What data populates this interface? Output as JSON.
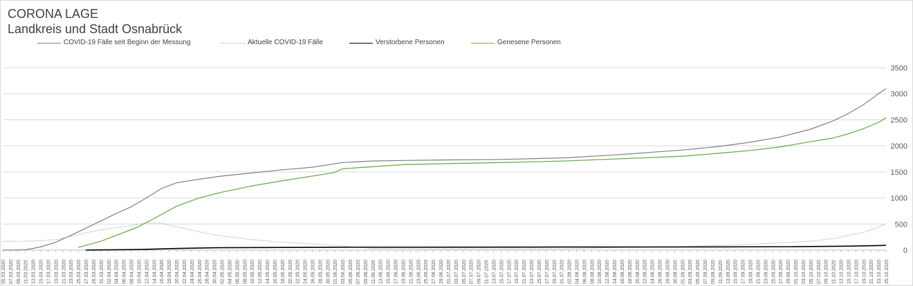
{
  "title": {
    "line1": "CORONA LAGE",
    "line2": "Landkreis und Stadt Osnabrück"
  },
  "legend": [
    {
      "label": "COVID-19 Fälle seit Beginn der Messung",
      "color": "#7f7f7f",
      "style": "solid"
    },
    {
      "label": "Aktuelle COVID-19 Fälle",
      "color": "#a6a6a6",
      "style": "dotted"
    },
    {
      "label": "Verstorbene Personen",
      "color": "#000000",
      "style": "solid"
    },
    {
      "label": "Genesene Personen",
      "color": "#70ad47",
      "style": "solid"
    }
  ],
  "chart_data": {
    "type": "line",
    "title": "CORONA LAGE",
    "subtitle": "Landkreis und Stadt Osnabrück",
    "xlabel": "",
    "ylabel": "",
    "ylim": [
      0,
      3500
    ],
    "yticks": [
      0,
      500,
      1000,
      1500,
      2000,
      2500,
      3000,
      3500
    ],
    "grid": "horizontal",
    "legend_position": "top",
    "x_start": "05.03.2020",
    "x_end": "25.10.2020",
    "x_tick_labels": [
      "05.03.2020",
      "07.03.2020",
      "09.03.2020",
      "11.03.2020",
      "13.03.2020",
      "15.03.2020",
      "17.03.2020",
      "19.03.2020",
      "21.03.2020",
      "23.03.2020",
      "25.03.2020",
      "27.03.2020",
      "29.03.2020",
      "31.03.2020",
      "02.04.2020",
      "04.04.2020",
      "06.04.2020",
      "08.04.2020",
      "10.04.2020",
      "12.04.2020",
      "14.04.2020",
      "16.04.2020",
      "18.04.2020",
      "20.04.2020",
      "22.04.2020",
      "24.04.2020",
      "26.04.2020",
      "28.04.2020",
      "30.04.2020",
      "02.05.2020",
      "04.05.2020",
      "06.05.2020",
      "08.05.2020",
      "10.05.2020",
      "12.05.2020",
      "14.05.2020",
      "16.05.2020",
      "18.05.2020",
      "20.05.2020",
      "22.05.2020",
      "24.05.2020",
      "26.05.2020",
      "28.05.2020",
      "30.05.2020",
      "01.06.2020",
      "03.06.2020",
      "05.06.2020",
      "07.06.2020",
      "09.06.2020",
      "11.06.2020",
      "13.06.2020",
      "15.06.2020",
      "17.06.2020",
      "19.06.2020",
      "21.06.2020",
      "23.06.2020",
      "25.06.2020",
      "27.06.2020",
      "29.06.2020",
      "01.07.2020",
      "03.07.2020",
      "05.07.2020",
      "07.07.2020",
      "09.07.2020",
      "11.07.2020",
      "13.07.2020",
      "15.07.2020",
      "17.07.2020",
      "19.07.2020",
      "21.07.2020",
      "23.07.2020",
      "25.07.2020",
      "27.07.2020",
      "29.07.2020",
      "31.07.2020",
      "02.08.2020",
      "04.08.2020",
      "06.08.2020",
      "08.08.2020",
      "10.08.2020",
      "12.08.2020",
      "14.08.2020",
      "16.08.2020",
      "18.08.2020",
      "20.08.2020",
      "22.08.2020",
      "24.08.2020",
      "26.08.2020",
      "28.08.2020",
      "30.08.2020",
      "01.09.2020",
      "03.09.2020",
      "05.09.2020",
      "07.09.2020",
      "09.09.2020",
      "11.09.2020",
      "13.09.2020",
      "15.09.2020",
      "17.09.2020",
      "19.09.2020",
      "21.09.2020",
      "23.09.2020",
      "25.09.2020",
      "27.09.2020",
      "29.09.2020",
      "01.10.2020",
      "03.10.2020",
      "05.10.2020",
      "07.10.2020",
      "09.10.2020",
      "11.10.2020",
      "13.10.2020",
      "15.10.2020",
      "17.10.2020",
      "19.10.2020",
      "21.10.2020",
      "23.10.2020",
      "25.10.2020"
    ],
    "series": [
      {
        "name": "COVID-19 Fälle seit Beginn der Messung",
        "color": "#7f7f7f",
        "points": [
          [
            "05.03.2020",
            0
          ],
          [
            "11.03.2020",
            5
          ],
          [
            "15.03.2020",
            60
          ],
          [
            "19.03.2020",
            150
          ],
          [
            "23.03.2020",
            280
          ],
          [
            "27.03.2020",
            420
          ],
          [
            "31.03.2020",
            560
          ],
          [
            "04.04.2020",
            700
          ],
          [
            "08.04.2020",
            830
          ],
          [
            "12.04.2020",
            1000
          ],
          [
            "16.04.2020",
            1180
          ],
          [
            "20.04.2020",
            1290
          ],
          [
            "26.04.2020",
            1360
          ],
          [
            "02.05.2020",
            1420
          ],
          [
            "10.05.2020",
            1480
          ],
          [
            "18.05.2020",
            1540
          ],
          [
            "26.05.2020",
            1590
          ],
          [
            "03.06.2020",
            1680
          ],
          [
            "11.06.2020",
            1710
          ],
          [
            "19.06.2020",
            1720
          ],
          [
            "01.07.2020",
            1730
          ],
          [
            "15.07.2020",
            1740
          ],
          [
            "01.08.2020",
            1770
          ],
          [
            "15.08.2020",
            1830
          ],
          [
            "01.09.2020",
            1920
          ],
          [
            "11.09.2020",
            1990
          ],
          [
            "19.09.2020",
            2070
          ],
          [
            "27.09.2020",
            2170
          ],
          [
            "05.10.2020",
            2320
          ],
          [
            "11.10.2020",
            2480
          ],
          [
            "15.10.2020",
            2620
          ],
          [
            "19.10.2020",
            2790
          ],
          [
            "23.10.2020",
            3000
          ],
          [
            "25.10.2020",
            3100
          ]
        ]
      },
      {
        "name": "Aktuelle COVID-19 Fälle",
        "color": "#a6a6a6",
        "points": [
          [
            "05.03.2020",
            170
          ],
          [
            "11.03.2020",
            170
          ],
          [
            "15.03.2020",
            180
          ],
          [
            "19.03.2020",
            200
          ],
          [
            "23.03.2020",
            260
          ],
          [
            "27.03.2020",
            330
          ],
          [
            "31.03.2020",
            390
          ],
          [
            "04.04.2020",
            430
          ],
          [
            "08.04.2020",
            470
          ],
          [
            "12.04.2020",
            520
          ],
          [
            "16.04.2020",
            520
          ],
          [
            "18.04.2020",
            480
          ],
          [
            "22.04.2020",
            420
          ],
          [
            "26.04.2020",
            350
          ],
          [
            "02.05.2020",
            270
          ],
          [
            "10.05.2020",
            200
          ],
          [
            "18.05.2020",
            150
          ],
          [
            "26.05.2020",
            120
          ],
          [
            "03.06.2020",
            80
          ],
          [
            "11.06.2020",
            30
          ],
          [
            "01.07.2020",
            20
          ],
          [
            "01.08.2020",
            25
          ],
          [
            "15.08.2020",
            50
          ],
          [
            "01.09.2020",
            70
          ],
          [
            "11.09.2020",
            90
          ],
          [
            "19.09.2020",
            110
          ],
          [
            "27.09.2020",
            140
          ],
          [
            "05.10.2020",
            170
          ],
          [
            "11.10.2020",
            220
          ],
          [
            "15.10.2020",
            280
          ],
          [
            "19.10.2020",
            340
          ],
          [
            "23.10.2020",
            440
          ],
          [
            "25.10.2020",
            510
          ]
        ]
      },
      {
        "name": "Verstorbene Personen",
        "color": "#000000",
        "points": [
          [
            "27.03.2020",
            0
          ],
          [
            "10.04.2020",
            10
          ],
          [
            "20.04.2020",
            30
          ],
          [
            "01.05.2020",
            45
          ],
          [
            "01.06.2020",
            55
          ],
          [
            "01.08.2020",
            58
          ],
          [
            "01.09.2020",
            60
          ],
          [
            "01.10.2020",
            65
          ],
          [
            "15.10.2020",
            75
          ],
          [
            "25.10.2020",
            90
          ]
        ]
      },
      {
        "name": "Genesene Personen",
        "color": "#70ad47",
        "points": [
          [
            "25.03.2020",
            50
          ],
          [
            "31.03.2020",
            170
          ],
          [
            "04.04.2020",
            280
          ],
          [
            "10.04.2020",
            450
          ],
          [
            "16.04.2020",
            680
          ],
          [
            "20.04.2020",
            840
          ],
          [
            "26.04.2020",
            1000
          ],
          [
            "02.05.2020",
            1110
          ],
          [
            "10.05.2020",
            1230
          ],
          [
            "18.05.2020",
            1330
          ],
          [
            "26.05.2020",
            1420
          ],
          [
            "01.06.2020",
            1490
          ],
          [
            "03.06.2020",
            1560
          ],
          [
            "11.06.2020",
            1600
          ],
          [
            "19.06.2020",
            1640
          ],
          [
            "01.07.2020",
            1660
          ],
          [
            "15.07.2020",
            1680
          ],
          [
            "01.08.2020",
            1710
          ],
          [
            "15.08.2020",
            1750
          ],
          [
            "01.09.2020",
            1800
          ],
          [
            "11.09.2020",
            1860
          ],
          [
            "19.09.2020",
            1910
          ],
          [
            "27.09.2020",
            1980
          ],
          [
            "05.10.2020",
            2080
          ],
          [
            "11.10.2020",
            2150
          ],
          [
            "15.10.2020",
            2230
          ],
          [
            "19.10.2020",
            2330
          ],
          [
            "23.10.2020",
            2450
          ],
          [
            "25.10.2020",
            2540
          ]
        ]
      }
    ]
  }
}
